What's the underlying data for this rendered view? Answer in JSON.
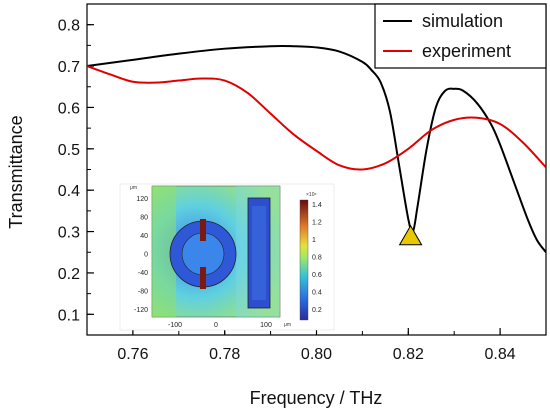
{
  "chart_data": {
    "type": "line",
    "xlabel": "Frequency / THz",
    "ylabel": "Transmittance",
    "xlim": [
      0.75,
      0.85
    ],
    "ylim": [
      0.05,
      0.85
    ],
    "x_ticks": [
      0.76,
      0.78,
      0.8,
      0.82,
      0.84
    ],
    "x_tick_labels": [
      "0.76",
      "0.78",
      "0.80",
      "0.82",
      "0.84"
    ],
    "y_ticks": [
      0.1,
      0.2,
      0.3,
      0.4,
      0.5,
      0.6,
      0.7,
      0.8
    ],
    "y_tick_labels": [
      "0.1",
      "0.2",
      "0.3",
      "0.4",
      "0.5",
      "0.6",
      "0.7",
      "0.8"
    ],
    "legend_position": "top-right",
    "series": [
      {
        "name": "simulation",
        "color": "#000000",
        "x": [
          0.75,
          0.76,
          0.77,
          0.78,
          0.79,
          0.795,
          0.8,
          0.805,
          0.81,
          0.812,
          0.814,
          0.816,
          0.818,
          0.82,
          0.821,
          0.822,
          0.824,
          0.826,
          0.828,
          0.83,
          0.832,
          0.835,
          0.838,
          0.84,
          0.843,
          0.846,
          0.848,
          0.85
        ],
        "y": [
          0.7,
          0.715,
          0.73,
          0.742,
          0.748,
          0.748,
          0.745,
          0.735,
          0.71,
          0.69,
          0.66,
          0.59,
          0.46,
          0.33,
          0.3,
          0.36,
          0.5,
          0.6,
          0.64,
          0.645,
          0.64,
          0.61,
          0.56,
          0.51,
          0.42,
          0.33,
          0.28,
          0.25
        ]
      },
      {
        "name": "experiment",
        "color": "#e00000",
        "x": [
          0.75,
          0.755,
          0.76,
          0.765,
          0.77,
          0.775,
          0.78,
          0.785,
          0.79,
          0.795,
          0.8,
          0.805,
          0.81,
          0.815,
          0.82,
          0.825,
          0.83,
          0.835,
          0.84,
          0.845,
          0.85
        ],
        "y": [
          0.7,
          0.68,
          0.662,
          0.66,
          0.665,
          0.67,
          0.665,
          0.635,
          0.585,
          0.535,
          0.495,
          0.46,
          0.45,
          0.465,
          0.5,
          0.545,
          0.57,
          0.575,
          0.56,
          0.515,
          0.455
        ]
      }
    ],
    "annotations": [
      {
        "type": "triangle-marker",
        "x": 0.8205,
        "y": 0.29,
        "color": "#e8c800"
      }
    ],
    "inset": {
      "x_tick_labels": [
        "-100",
        "0",
        "100"
      ],
      "x_unit": "μm",
      "y_tick_labels": [
        "120",
        "80",
        "40",
        "0",
        "-40",
        "-80",
        "-120"
      ],
      "y_unit": "μm",
      "colorbar_multiplier": "×10⁶",
      "colorbar_tick_labels": [
        "1.4",
        "1.2",
        "1",
        "0.8",
        "0.6",
        "0.4",
        "0.2"
      ]
    }
  }
}
